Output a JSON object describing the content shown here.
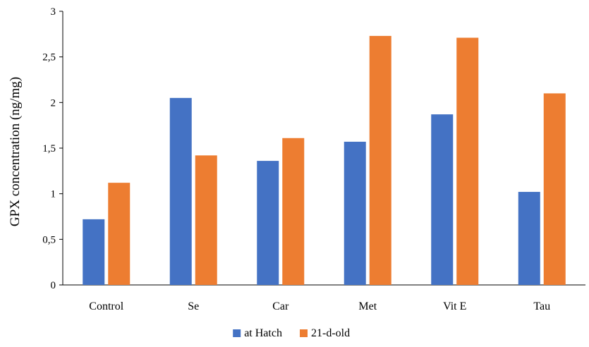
{
  "chart_data": {
    "type": "bar",
    "ylabel": "GPX concentration (ng/mg)",
    "categories": [
      "Control",
      "Se",
      "Car",
      "Met",
      "Vit E",
      "Tau"
    ],
    "series": [
      {
        "name": "at Hatch",
        "color": "#4472c4",
        "values": [
          0.72,
          2.05,
          1.36,
          1.57,
          1.87,
          1.02
        ]
      },
      {
        "name": "21-d-old",
        "color": "#ed7d31",
        "values": [
          1.12,
          1.42,
          1.61,
          2.73,
          2.71,
          2.1
        ]
      }
    ],
    "ylim": [
      0,
      3
    ],
    "yticks": [
      0,
      0.5,
      1,
      1.5,
      2,
      2.5,
      3
    ],
    "ytick_labels": [
      "0",
      "0,5",
      "1",
      "1,5",
      "2",
      "2,5",
      "3"
    ],
    "grid": false,
    "legend_position": "bottom"
  }
}
